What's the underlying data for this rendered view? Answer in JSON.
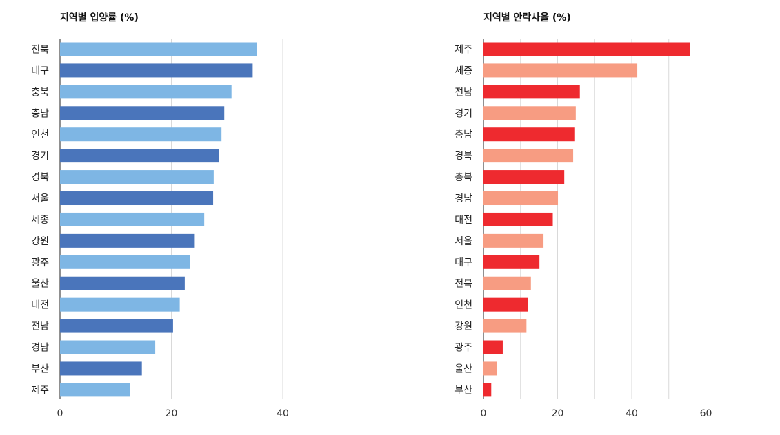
{
  "chart_data": [
    {
      "type": "bar",
      "orientation": "horizontal",
      "title": "지역별 입양률 (%)",
      "categories": [
        "전북",
        "대구",
        "충북",
        "충남",
        "인천",
        "경기",
        "경북",
        "서울",
        "세종",
        "강원",
        "광주",
        "울산",
        "대전",
        "전남",
        "경남",
        "부산",
        "제주"
      ],
      "values": [
        35.4,
        34.6,
        30.8,
        29.5,
        29.0,
        28.6,
        27.6,
        27.5,
        25.9,
        24.2,
        23.4,
        22.4,
        21.5,
        20.3,
        17.1,
        14.7,
        12.6
      ],
      "colors": [
        "#7eb6e4",
        "#4a75bb"
      ],
      "xlim": [
        0,
        40
      ],
      "xticks": [
        0,
        20,
        40
      ],
      "grid": true
    },
    {
      "type": "bar",
      "orientation": "horizontal",
      "title": "지역별 안락사율 (%)",
      "categories": [
        "제주",
        "세종",
        "전남",
        "경기",
        "충남",
        "경북",
        "충북",
        "경남",
        "대전",
        "서울",
        "대구",
        "전북",
        "인천",
        "강원",
        "광주",
        "울산",
        "부산"
      ],
      "values": [
        55.7,
        41.5,
        26.0,
        24.9,
        24.7,
        24.2,
        21.8,
        20.1,
        18.7,
        16.2,
        15.1,
        12.8,
        12.0,
        11.6,
        5.2,
        3.6,
        2.1
      ],
      "colors": [
        "#ee2a2f",
        "#f79c82"
      ],
      "xlim": [
        0,
        60
      ],
      "xticks": [
        0,
        20,
        40,
        60
      ],
      "grid": true
    }
  ]
}
